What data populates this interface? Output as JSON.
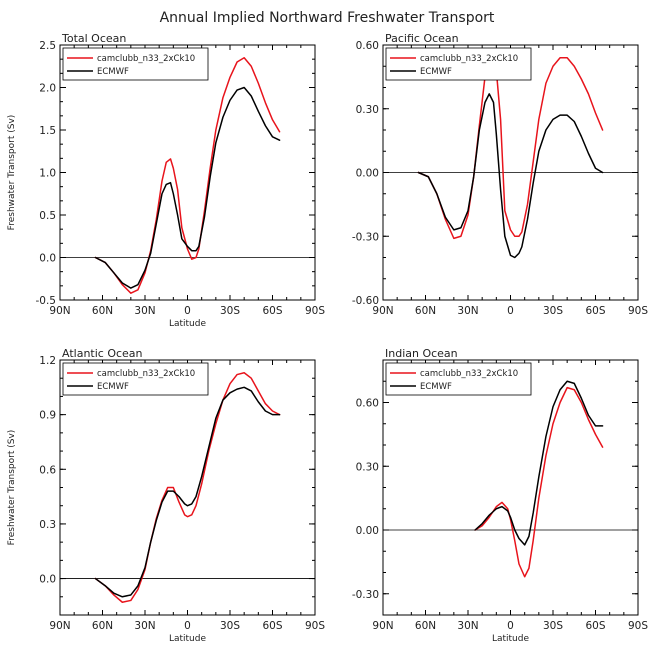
{
  "title": "Annual Implied Northward Freshwater Transport",
  "legend": [
    "camclubb_n33_2xCk10",
    "ECMWF"
  ],
  "colors": {
    "model": "#e8141c",
    "obs": "#000000"
  },
  "x_tick_labels": [
    "90N",
    "60N",
    "30N",
    "0",
    "30S",
    "60S",
    "90S"
  ],
  "chart_data": [
    {
      "type": "line",
      "title": "Total Ocean",
      "xlabel": "Latitude",
      "ylabel": "Freshwater Transport (Sv)",
      "xlim": [
        90,
        -90
      ],
      "ylim": [
        -0.5,
        2.5
      ],
      "yticks": [
        -0.5,
        0.0,
        0.5,
        1.0,
        1.5,
        2.0,
        2.5
      ],
      "ytick_labels": [
        "-0.5",
        "0.0",
        "0.5",
        "1.0",
        "1.5",
        "2.0",
        "2.5"
      ],
      "grid": false,
      "legend_position": "top-left",
      "series": [
        {
          "name": "camclubb_n33_2xCk10",
          "color": "#e8141c",
          "x": [
            65,
            58,
            52,
            46,
            40,
            35,
            30,
            26,
            22,
            18,
            15,
            12,
            10,
            7,
            4,
            0,
            -3,
            -6,
            -8,
            -12,
            -16,
            -20,
            -25,
            -30,
            -35,
            -40,
            -45,
            -50,
            -55,
            -60,
            -65
          ],
          "y": [
            0,
            -0.06,
            -0.18,
            -0.32,
            -0.42,
            -0.38,
            -0.18,
            0.08,
            0.45,
            0.9,
            1.12,
            1.16,
            1.05,
            0.8,
            0.35,
            0.1,
            -0.02,
            0.0,
            0.1,
            0.55,
            1.05,
            1.5,
            1.88,
            2.12,
            2.3,
            2.35,
            2.25,
            2.05,
            1.82,
            1.62,
            1.48
          ]
        },
        {
          "name": "ECMWF",
          "color": "#000000",
          "x": [
            65,
            58,
            52,
            46,
            40,
            35,
            30,
            26,
            22,
            18,
            15,
            12,
            10,
            7,
            4,
            0,
            -3,
            -6,
            -8,
            -12,
            -16,
            -20,
            -25,
            -30,
            -35,
            -40,
            -45,
            -50,
            -55,
            -60,
            -65
          ],
          "y": [
            0,
            -0.06,
            -0.18,
            -0.3,
            -0.36,
            -0.32,
            -0.15,
            0.05,
            0.4,
            0.75,
            0.86,
            0.88,
            0.75,
            0.5,
            0.22,
            0.13,
            0.08,
            0.08,
            0.13,
            0.48,
            0.95,
            1.35,
            1.65,
            1.85,
            1.97,
            2.0,
            1.9,
            1.72,
            1.55,
            1.42,
            1.38
          ]
        }
      ]
    },
    {
      "type": "line",
      "title": "Pacific Ocean",
      "xlabel": "",
      "ylabel": "",
      "xlim": [
        90,
        -90
      ],
      "ylim": [
        -0.6,
        0.6
      ],
      "yticks": [
        -0.6,
        -0.3,
        0.0,
        0.3,
        0.6
      ],
      "ytick_labels": [
        "-0.60",
        "-0.30",
        "0.00",
        "0.30",
        "0.60"
      ],
      "grid": false,
      "legend_position": "top-left",
      "series": [
        {
          "name": "camclubb_n33_2xCk10",
          "color": "#e8141c",
          "x": [
            65,
            58,
            52,
            46,
            40,
            35,
            30,
            26,
            22,
            18,
            15,
            12,
            10,
            7,
            4,
            0,
            -3,
            -6,
            -8,
            -12,
            -16,
            -20,
            -25,
            -30,
            -35,
            -40,
            -45,
            -50,
            -55,
            -60,
            -65
          ],
          "y": [
            0,
            -0.02,
            -0.1,
            -0.22,
            -0.31,
            -0.3,
            -0.2,
            -0.02,
            0.22,
            0.45,
            0.56,
            0.56,
            0.48,
            0.25,
            -0.18,
            -0.27,
            -0.3,
            -0.3,
            -0.28,
            -0.15,
            0.05,
            0.25,
            0.42,
            0.5,
            0.54,
            0.54,
            0.5,
            0.44,
            0.37,
            0.28,
            0.2
          ]
        },
        {
          "name": "ECMWF",
          "color": "#000000",
          "x": [
            65,
            58,
            52,
            46,
            40,
            35,
            30,
            26,
            22,
            18,
            15,
            12,
            10,
            7,
            4,
            0,
            -3,
            -6,
            -8,
            -12,
            -16,
            -20,
            -25,
            -30,
            -35,
            -40,
            -45,
            -50,
            -55,
            -60,
            -65
          ],
          "y": [
            0,
            -0.02,
            -0.1,
            -0.21,
            -0.27,
            -0.26,
            -0.18,
            -0.02,
            0.2,
            0.33,
            0.37,
            0.33,
            0.18,
            -0.08,
            -0.3,
            -0.39,
            -0.4,
            -0.38,
            -0.35,
            -0.22,
            -0.05,
            0.1,
            0.2,
            0.25,
            0.27,
            0.27,
            0.24,
            0.17,
            0.09,
            0.02,
            0.0
          ]
        }
      ]
    },
    {
      "type": "line",
      "title": "Atlantic Ocean",
      "xlabel": "Latitude",
      "ylabel": "Freshwater Transport (Sv)",
      "xlim": [
        90,
        -90
      ],
      "ylim": [
        -0.2,
        1.2
      ],
      "yticks": [
        0.0,
        0.3,
        0.6,
        0.9,
        1.2
      ],
      "ytick_labels": [
        "0.0",
        "0.3",
        "0.6",
        "0.9",
        "1.2"
      ],
      "grid": false,
      "legend_position": "top-left",
      "series": [
        {
          "name": "camclubb_n33_2xCk10",
          "color": "#e8141c",
          "x": [
            65,
            58,
            52,
            46,
            40,
            35,
            30,
            26,
            22,
            18,
            14,
            10,
            6,
            2,
            0,
            -3,
            -6,
            -10,
            -15,
            -20,
            -25,
            -30,
            -35,
            -40,
            -45,
            -50,
            -55,
            -60,
            -65
          ],
          "y": [
            0,
            -0.04,
            -0.09,
            -0.13,
            -0.12,
            -0.06,
            0.05,
            0.2,
            0.33,
            0.43,
            0.5,
            0.5,
            0.42,
            0.35,
            0.34,
            0.35,
            0.4,
            0.52,
            0.7,
            0.85,
            0.98,
            1.07,
            1.12,
            1.13,
            1.1,
            1.03,
            0.96,
            0.92,
            0.9
          ]
        },
        {
          "name": "ECMWF",
          "color": "#000000",
          "x": [
            65,
            58,
            52,
            46,
            40,
            35,
            30,
            26,
            22,
            18,
            14,
            10,
            6,
            2,
            0,
            -3,
            -6,
            -10,
            -15,
            -20,
            -25,
            -30,
            -35,
            -40,
            -45,
            -50,
            -55,
            -60,
            -65
          ],
          "y": [
            0,
            -0.04,
            -0.08,
            -0.1,
            -0.09,
            -0.04,
            0.06,
            0.2,
            0.32,
            0.42,
            0.48,
            0.48,
            0.45,
            0.41,
            0.4,
            0.41,
            0.45,
            0.56,
            0.72,
            0.88,
            0.98,
            1.02,
            1.04,
            1.05,
            1.03,
            0.97,
            0.92,
            0.9,
            0.9
          ]
        }
      ]
    },
    {
      "type": "line",
      "title": "Indian Ocean",
      "xlabel": "Latitude",
      "ylabel": "",
      "xlim": [
        90,
        -90
      ],
      "ylim": [
        -0.4,
        0.8
      ],
      "yticks": [
        -0.3,
        0.0,
        0.3,
        0.6
      ],
      "ytick_labels": [
        "-0.30",
        "0.00",
        "0.30",
        "0.60"
      ],
      "grid": false,
      "legend_position": "top-left",
      "series": [
        {
          "name": "camclubb_n33_2xCk10",
          "color": "#e8141c",
          "x": [
            25,
            20,
            15,
            10,
            6,
            2,
            0,
            -3,
            -6,
            -10,
            -13,
            -16,
            -20,
            -25,
            -30,
            -35,
            -40,
            -45,
            -50,
            -55,
            -60,
            -65
          ],
          "y": [
            0,
            0.02,
            0.06,
            0.11,
            0.13,
            0.1,
            0.05,
            -0.05,
            -0.16,
            -0.22,
            -0.18,
            -0.05,
            0.15,
            0.35,
            0.5,
            0.6,
            0.67,
            0.66,
            0.6,
            0.52,
            0.45,
            0.39
          ]
        },
        {
          "name": "ECMWF",
          "color": "#000000",
          "x": [
            25,
            20,
            15,
            10,
            6,
            2,
            0,
            -3,
            -6,
            -10,
            -13,
            -16,
            -20,
            -25,
            -30,
            -35,
            -40,
            -45,
            -50,
            -55,
            -60,
            -65
          ],
          "y": [
            0,
            0.03,
            0.07,
            0.1,
            0.11,
            0.09,
            0.06,
            0.0,
            -0.04,
            -0.07,
            -0.03,
            0.08,
            0.25,
            0.44,
            0.58,
            0.66,
            0.7,
            0.69,
            0.62,
            0.54,
            0.49,
            0.49
          ]
        }
      ]
    }
  ]
}
